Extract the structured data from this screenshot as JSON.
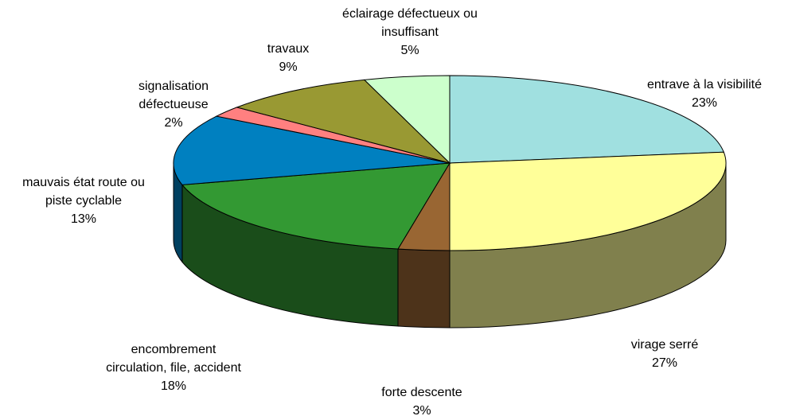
{
  "chart_data": {
    "type": "pie",
    "categories": [
      "entrave à la visibilité",
      "virage serré",
      "forte descente",
      "encombrement\ncirculation, file, accident",
      "mauvais état route ou\npiste cyclable",
      "signalisation\ndéfectueuse",
      "travaux",
      "éclairage défectueux ou\ninsuffisant"
    ],
    "values": [
      23,
      27,
      3,
      18,
      13,
      2,
      9,
      5
    ],
    "value_labels": [
      "23%",
      "27%",
      "3%",
      "18%",
      "13%",
      "2%",
      "9%",
      "5%"
    ],
    "colors": [
      "#a0e0e0",
      "#ffff99",
      "#996633",
      "#339933",
      "#0080c0",
      "#ff8080",
      "#999933",
      "#ccffcc"
    ]
  }
}
